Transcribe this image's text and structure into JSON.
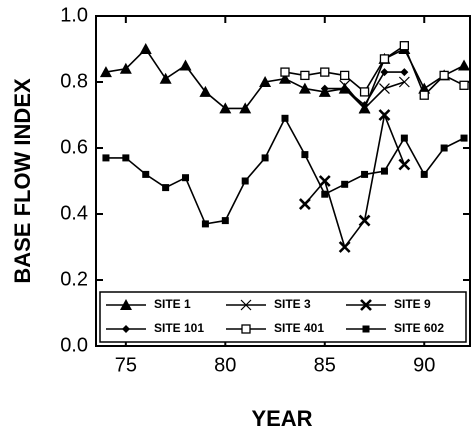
{
  "chart_data": {
    "type": "line",
    "x_label": "YEAR",
    "y_label": "BASE FLOW INDEX",
    "x": [
      74,
      75,
      76,
      77,
      78,
      79,
      80,
      81,
      82,
      83,
      84,
      85,
      86,
      87,
      88,
      89,
      90,
      91,
      92
    ],
    "xlim": [
      73.5,
      92.3
    ],
    "xticks": [
      75,
      80,
      85,
      90
    ],
    "ylim": [
      0,
      1
    ],
    "yticks": [
      {
        "value": 0,
        "label": "0.0"
      },
      {
        "value": 0.2,
        "label": "0.2"
      },
      {
        "value": 0.4,
        "label": "0.4"
      },
      {
        "value": 0.6,
        "label": "0.6"
      },
      {
        "value": 0.8,
        "label": "0.8"
      },
      {
        "value": 1,
        "label": "1.0"
      }
    ],
    "legend": "bottom",
    "series": [
      {
        "name": "SITE 1",
        "color": "#000000",
        "marker": "triangle",
        "values": [
          0.83,
          0.84,
          0.9,
          0.81,
          0.85,
          0.77,
          0.72,
          0.72,
          0.8,
          0.81,
          0.78,
          0.77,
          0.78,
          0.72,
          0.87,
          0.9,
          0.78,
          0.82,
          0.85
        ]
      },
      {
        "name": "SITE 3",
        "color": "#000000",
        "marker": "x-thin",
        "values": [
          null,
          null,
          null,
          null,
          null,
          null,
          null,
          null,
          null,
          null,
          null,
          null,
          0.79,
          0.72,
          0.78,
          0.8,
          null,
          null,
          null
        ]
      },
      {
        "name": "SITE 9",
        "color": "#000000",
        "marker": "x-bold",
        "values": [
          null,
          null,
          null,
          null,
          null,
          null,
          null,
          null,
          null,
          null,
          0.43,
          0.5,
          0.3,
          0.38,
          0.7,
          0.55,
          null,
          null,
          null
        ]
      },
      {
        "name": "SITE 101",
        "color": "#000000",
        "marker": "diamond",
        "values": [
          null,
          null,
          null,
          null,
          null,
          null,
          null,
          null,
          null,
          null,
          null,
          0.78,
          0.78,
          0.73,
          0.83,
          0.83,
          null,
          null,
          null
        ]
      },
      {
        "name": "SITE 401",
        "color": "#000000",
        "marker": "square-open",
        "values": [
          null,
          null,
          null,
          null,
          null,
          null,
          null,
          null,
          null,
          0.83,
          0.82,
          0.83,
          0.82,
          0.77,
          0.87,
          0.91,
          0.76,
          0.82,
          0.79
        ]
      },
      {
        "name": "SITE 602",
        "color": "#000000",
        "marker": "square-filled",
        "values": [
          0.57,
          0.57,
          0.52,
          0.48,
          0.51,
          0.37,
          0.38,
          0.5,
          0.57,
          0.69,
          0.58,
          0.46,
          0.49,
          0.52,
          0.53,
          0.63,
          0.52,
          0.6,
          0.63
        ]
      }
    ]
  }
}
